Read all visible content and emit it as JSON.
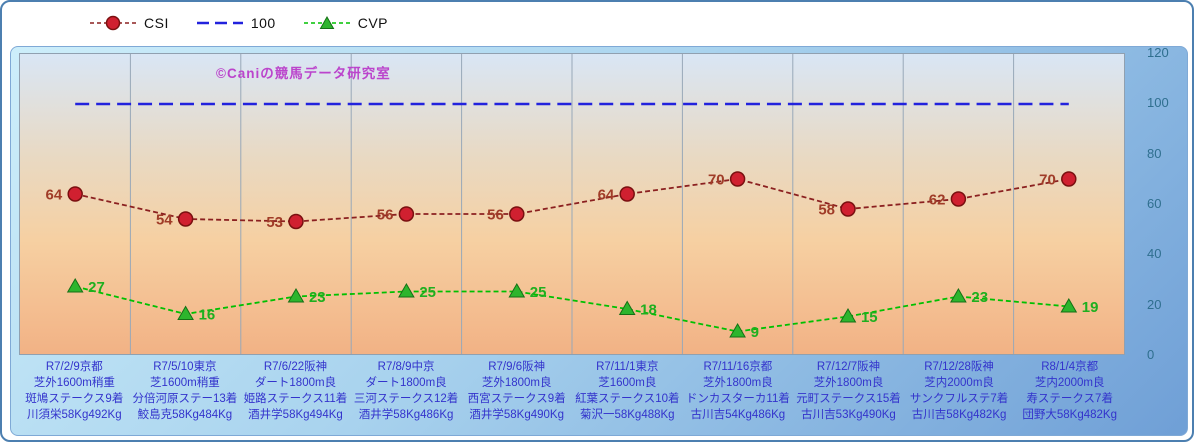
{
  "watermark": "©Caniの競馬データ研究室",
  "colors": {
    "csi_line": "#8b2020",
    "csi_marker": "#d02030",
    "csi_label": "#a03c28",
    "reference_line": "#2222dd",
    "cvp_line": "#00c000",
    "cvp_marker": "#2db52d",
    "cvp_label": "#1faf1f",
    "x_label": "#3333cc",
    "y_label": "#2f6f8f"
  },
  "chart_data": {
    "type": "line",
    "title": "",
    "xlabel": "",
    "ylabel": "",
    "ylim": [
      0,
      120
    ],
    "yticks": [
      0,
      20,
      40,
      60,
      80,
      100,
      120
    ],
    "grid": "vertical",
    "legend_position": "top",
    "categories": [
      [
        "R7/2/9京都",
        "芝外1600m稍重",
        "斑鳩ステークス9着",
        "川須栄58Kg492Kg"
      ],
      [
        "R7/5/10東京",
        "芝1600m稍重",
        "分倍河原ステー13着",
        "鮫島克58Kg484Kg"
      ],
      [
        "R7/6/22阪神",
        "ダート1800m良",
        "姫路ステークス11着",
        "酒井学58Kg494Kg"
      ],
      [
        "R7/8/9中京",
        "ダート1800m良",
        "三河ステークス12着",
        "酒井学58Kg486Kg"
      ],
      [
        "R7/9/6阪神",
        "芝外1800m良",
        "西宮ステークス9着",
        "酒井学58Kg490Kg"
      ],
      [
        "R7/11/1東京",
        "芝1600m良",
        "紅葉ステークス10着",
        "菊沢一58Kg488Kg"
      ],
      [
        "R7/11/16京都",
        "芝外1800m良",
        "ドンカスターカ11着",
        "古川吉54Kg486Kg"
      ],
      [
        "R7/12/7阪神",
        "芝外1800m良",
        "元町ステークス15着",
        "古川吉53Kg490Kg"
      ],
      [
        "R7/12/28阪神",
        "芝内2000m良",
        "サンクフルステ7着",
        "古川吉58Kg482Kg"
      ],
      [
        "R8/1/4京都",
        "芝内2000m良",
        "寿ステークス7着",
        "団野大58Kg482Kg"
      ]
    ],
    "series": [
      {
        "name": "CSI",
        "type": "line",
        "marker": "circle",
        "color": "#8b2020",
        "marker_fill": "#d02030",
        "marker_edge": "#7a1010",
        "label_color": "#a03c28",
        "label_side": "left",
        "values": [
          64,
          54,
          53,
          56,
          56,
          64,
          70,
          58,
          62,
          70
        ]
      },
      {
        "name": "100",
        "type": "reference",
        "color": "#2222dd",
        "value": 100
      },
      {
        "name": "CVP",
        "type": "line",
        "marker": "triangle",
        "color": "#00c000",
        "marker_fill": "#2db52d",
        "marker_edge": "#157015",
        "label_color": "#1faf1f",
        "label_side": "right",
        "values": [
          27,
          16,
          23,
          25,
          25,
          18,
          9,
          15,
          23,
          19
        ]
      }
    ]
  }
}
